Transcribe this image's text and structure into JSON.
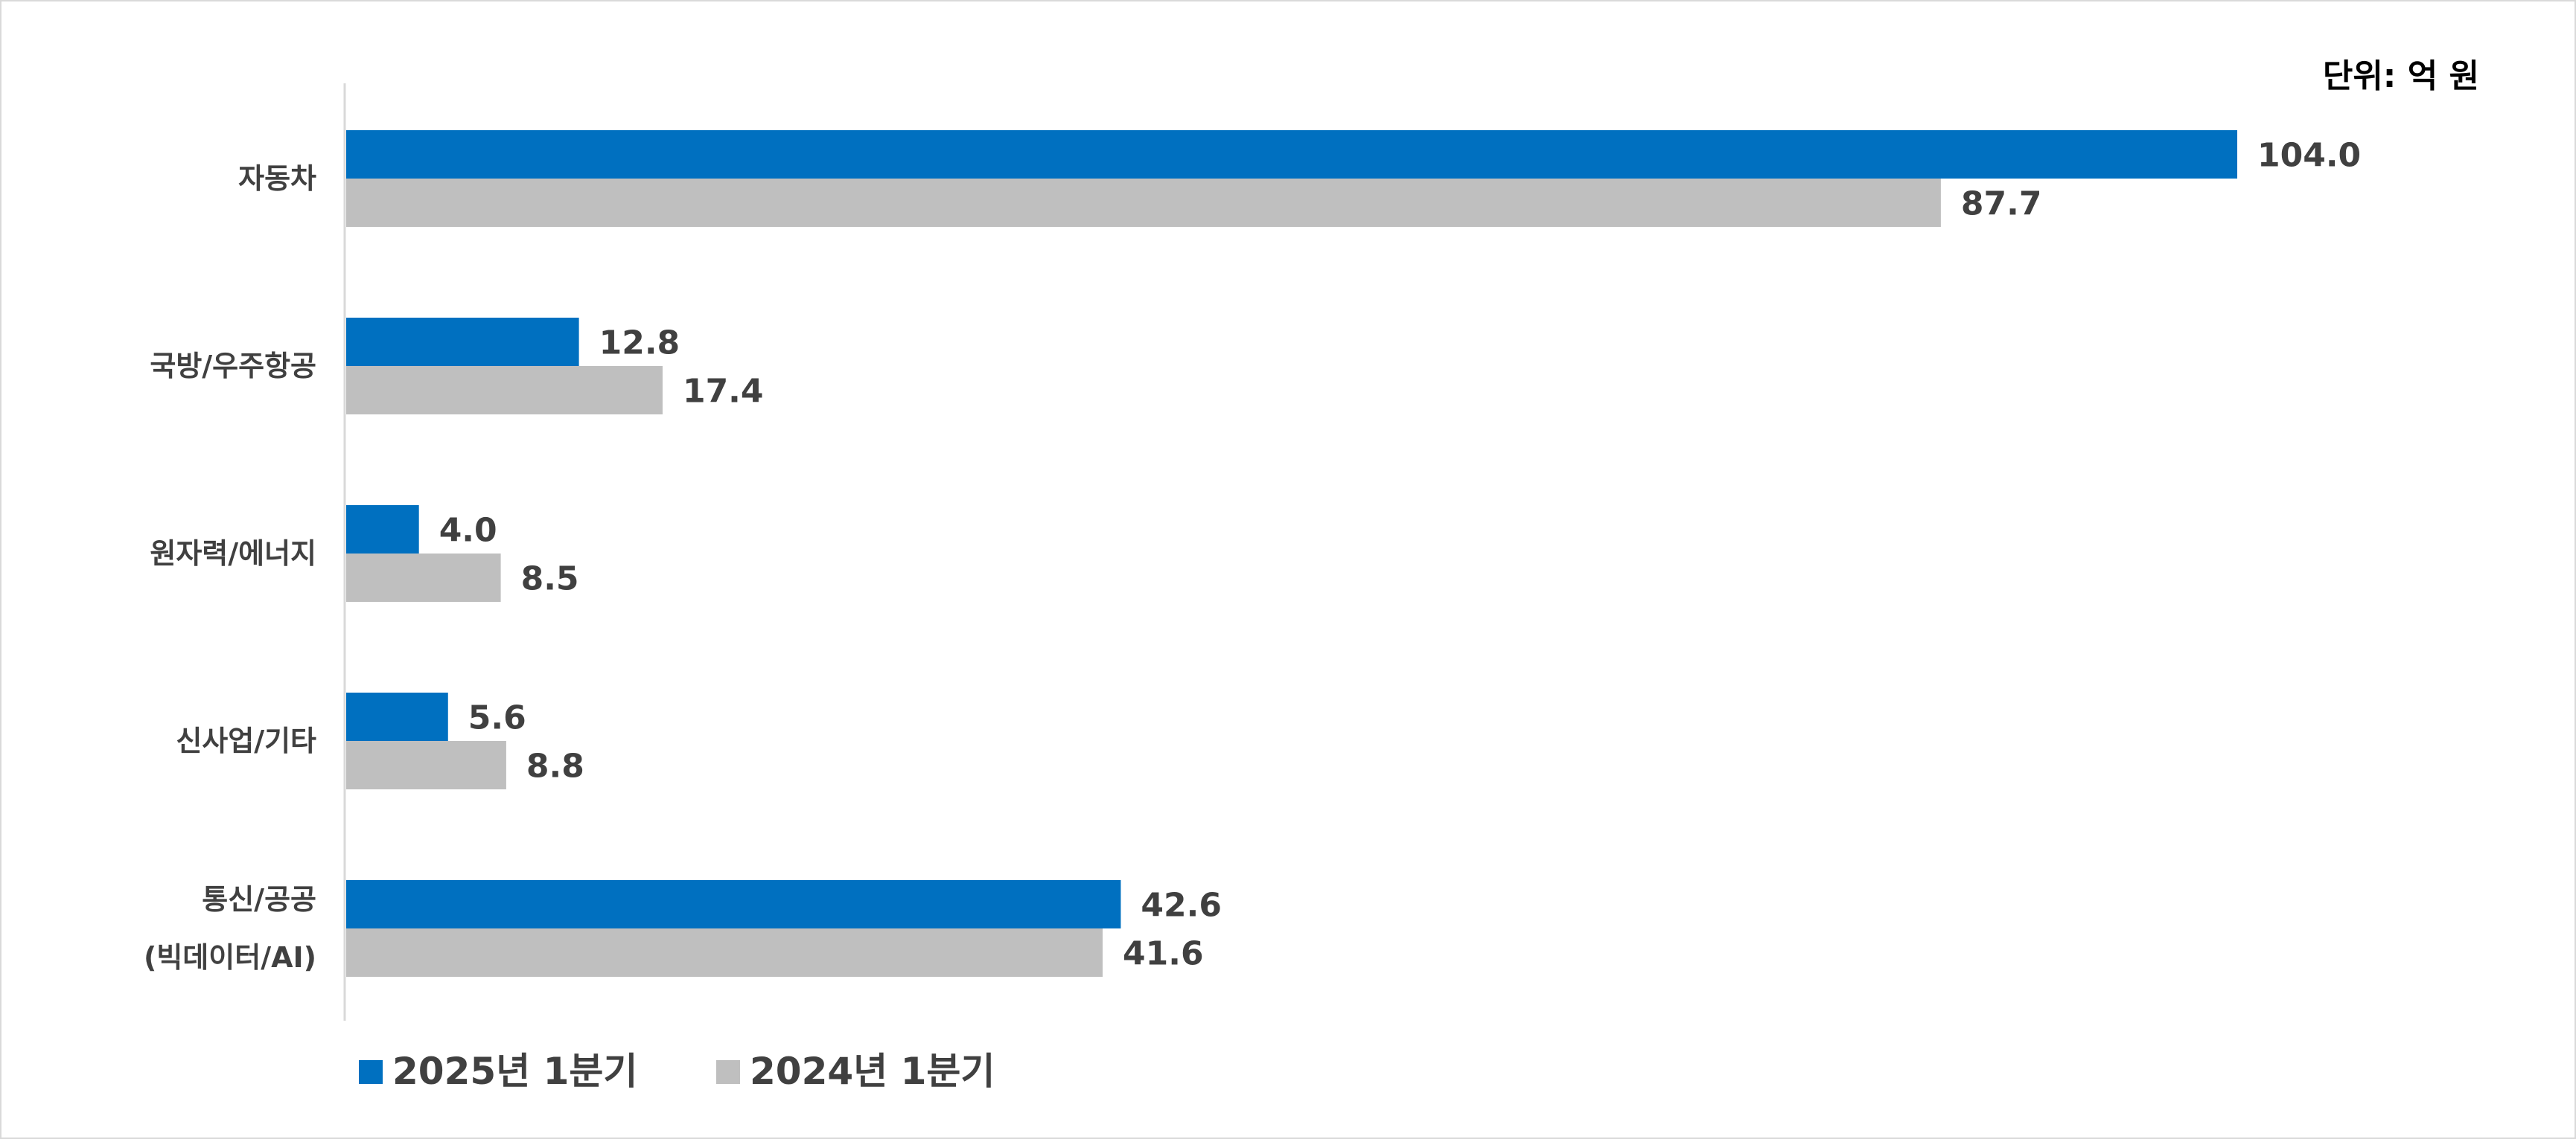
{
  "chart_data": {
    "type": "bar",
    "orientation": "horizontal",
    "unit_label": "단위: 억 원",
    "categories": [
      [
        "자동차"
      ],
      [
        "국방/우주항공"
      ],
      [
        "원자력/에너지"
      ],
      [
        "신사업/기타"
      ],
      [
        "통신/공공",
        "(빅데이터/AI)"
      ]
    ],
    "series": [
      {
        "name": "2025년 1분기",
        "color": "#0070C0",
        "values": [
          104.0,
          12.8,
          4.0,
          5.6,
          42.6
        ],
        "labels": [
          "104.0",
          "12.8",
          "4.0",
          "5.6",
          "42.6"
        ]
      },
      {
        "name": "2024년 1분기",
        "color": "#BFBFBF",
        "values": [
          87.7,
          17.4,
          8.5,
          8.8,
          41.6
        ],
        "labels": [
          "87.7",
          "17.4",
          "8.5",
          "8.8",
          "41.6"
        ]
      }
    ],
    "xlim": [
      0,
      104.0
    ],
    "grid": false,
    "legend_position": "bottom-left"
  }
}
